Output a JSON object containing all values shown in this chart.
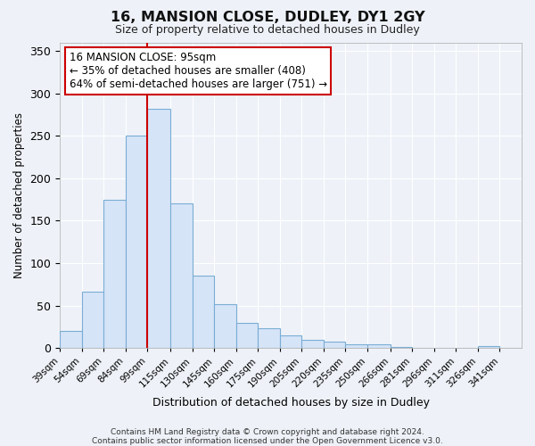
{
  "title": "16, MANSION CLOSE, DUDLEY, DY1 2GY",
  "subtitle": "Size of property relative to detached houses in Dudley",
  "xlabel": "Distribution of detached houses by size in Dudley",
  "ylabel": "Number of detached properties",
  "bar_color": "#d6e4f7",
  "bar_edge_color": "#7aadd4",
  "background_color": "#eef2f8",
  "plot_bg_color": "#eef2f8",
  "grid_color": "#ffffff",
  "vline_x": 99,
  "vline_color": "#cc0000",
  "categories": [
    "39sqm",
    "54sqm",
    "69sqm",
    "84sqm",
    "99sqm",
    "115sqm",
    "130sqm",
    "145sqm",
    "160sqm",
    "175sqm",
    "190sqm",
    "205sqm",
    "220sqm",
    "235sqm",
    "250sqm",
    "266sqm",
    "281sqm",
    "296sqm",
    "311sqm",
    "326sqm",
    "341sqm"
  ],
  "bin_left": [
    39,
    54,
    69,
    84,
    99,
    115,
    130,
    145,
    160,
    175,
    190,
    205,
    220,
    235,
    250,
    266,
    281,
    296,
    311,
    326,
    341
  ],
  "bin_width": [
    15,
    15,
    15,
    15,
    16,
    15,
    15,
    15,
    15,
    15,
    15,
    15,
    15,
    15,
    16,
    15,
    15,
    15,
    15,
    15,
    15
  ],
  "values": [
    20,
    66,
    175,
    250,
    282,
    170,
    85,
    52,
    30,
    23,
    15,
    10,
    8,
    5,
    4,
    1,
    0,
    0,
    0,
    2,
    0
  ],
  "ylim": [
    0,
    360
  ],
  "yticks": [
    0,
    50,
    100,
    150,
    200,
    250,
    300,
    350
  ],
  "annotation_title": "16 MANSION CLOSE: 95sqm",
  "annotation_line1": "← 35% of detached houses are smaller (408)",
  "annotation_line2": "64% of semi-detached houses are larger (751) →",
  "annotation_box_color": "#ffffff",
  "annotation_box_edge_color": "#cc0000",
  "footnote1": "Contains HM Land Registry data © Crown copyright and database right 2024.",
  "footnote2": "Contains public sector information licensed under the Open Government Licence v3.0."
}
